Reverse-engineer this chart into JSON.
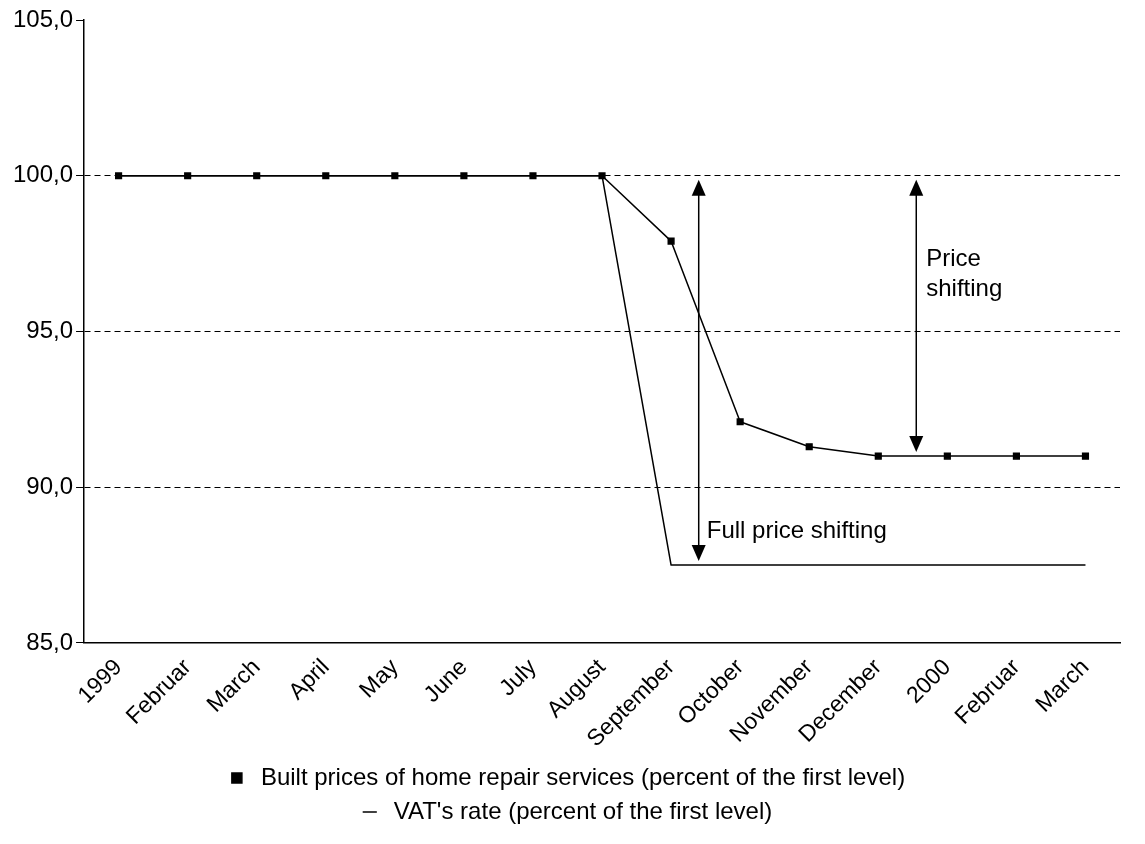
{
  "chart_data": {
    "type": "line",
    "categories": [
      "1999",
      "Februar",
      "March",
      "April",
      "May",
      "June",
      "July",
      "August",
      "September",
      "October",
      "November",
      "December",
      "2000",
      "Februar",
      "March"
    ],
    "series": [
      {
        "name": "Built prices of home repair services (percent of the first level)",
        "color": "#000000",
        "marker": "square",
        "values": [
          100,
          100,
          100,
          100,
          100,
          100,
          100,
          100,
          97.9,
          92.1,
          91.3,
          91.0,
          91.0,
          91.0,
          91.0
        ]
      },
      {
        "name": "VAT's rate (percent of the first level)",
        "color": "#000000",
        "marker": "none",
        "values": [
          100,
          100,
          100,
          100,
          100,
          100,
          100,
          100,
          87.5,
          87.5,
          87.5,
          87.5,
          87.5,
          87.5,
          87.5
        ]
      }
    ],
    "ylim": [
      85,
      105
    ],
    "yticks": [
      {
        "value": 85,
        "label": "85,0"
      },
      {
        "value": 90,
        "label": "90,0"
      },
      {
        "value": 95,
        "label": "95,0"
      },
      {
        "value": 100,
        "label": "100,0"
      },
      {
        "value": 105,
        "label": "105,0"
      }
    ],
    "grid": "y",
    "line_style": "solid",
    "legend": "bottom",
    "annotations": [
      "Full price shifting",
      "Price shifting"
    ]
  }
}
